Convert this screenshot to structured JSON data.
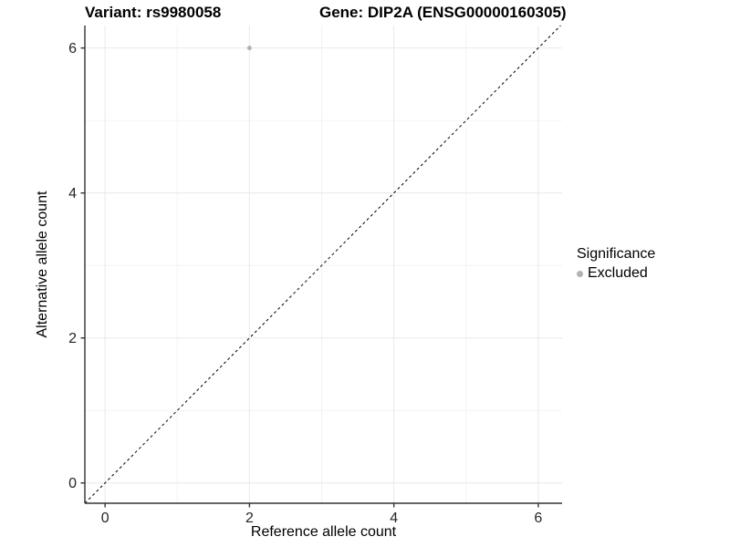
{
  "chart_data": {
    "type": "scatter",
    "title_left": "Variant: rs9980058",
    "title_right": "Gene: DIP2A (ENSG00000160305)",
    "xlabel": "Reference allele count",
    "ylabel": "Alternative allele count",
    "xlim": [
      -0.28,
      6.33
    ],
    "ylim": [
      -0.28,
      6.31
    ],
    "x_ticks": [
      0,
      2,
      4,
      6
    ],
    "y_ticks": [
      0,
      2,
      4,
      6
    ],
    "x_minor": [
      1,
      3,
      5
    ],
    "y_minor": [
      1,
      3,
      5
    ],
    "grid": true,
    "points": [
      {
        "x": 2,
        "y": 6,
        "series": "Excluded"
      }
    ],
    "identity_line": {
      "slope": 1,
      "intercept": 0,
      "dashed": true
    },
    "legend": {
      "title": "Significance",
      "position": "right",
      "items": [
        {
          "label": "Excluded",
          "color": "#b3b3b3"
        }
      ]
    },
    "colors": {
      "point": "#b3b3b3",
      "axis_line": "#333333",
      "tick_label": "#262626",
      "grid_major": "#e9e9e9",
      "grid_minor": "#f4f4f4",
      "dashed_line": "#000000"
    }
  }
}
